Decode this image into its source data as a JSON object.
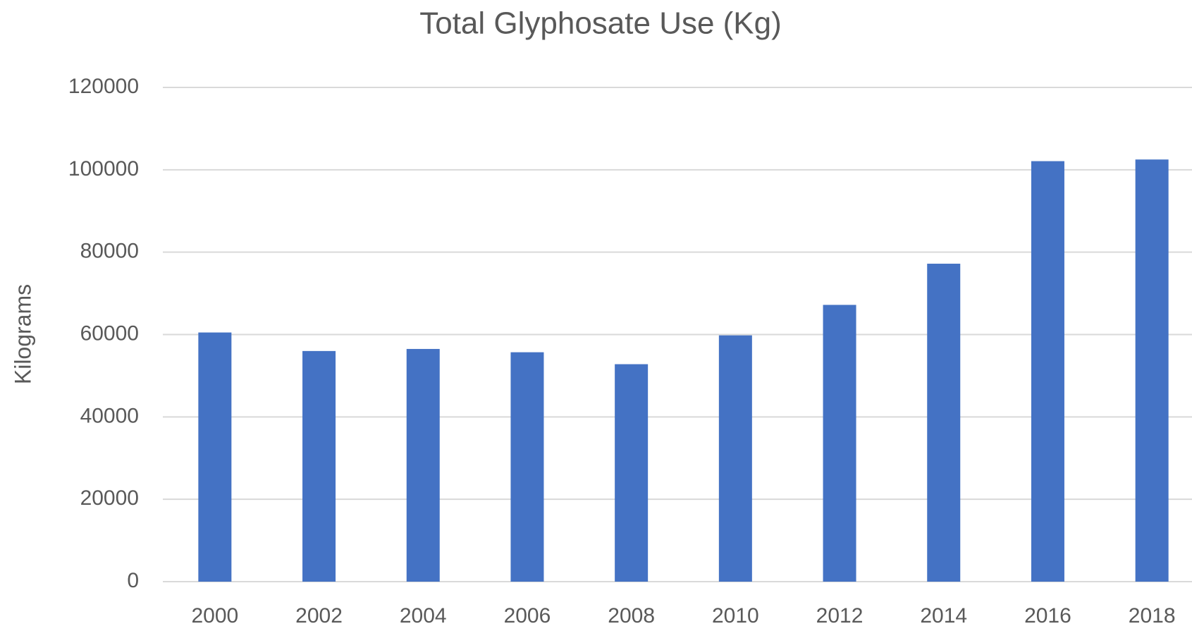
{
  "chart_data": {
    "type": "bar",
    "title": "Total Glyphosate Use (Kg)",
    "y_label": "Kilograms",
    "categories": [
      "2000",
      "2002",
      "2004",
      "2006",
      "2008",
      "2010",
      "2012",
      "2014",
      "2016",
      "2018"
    ],
    "values": [
      60500,
      56000,
      56500,
      55700,
      52800,
      59800,
      67200,
      77200,
      102100,
      102500
    ],
    "color": "#4472c4",
    "ylim": [
      0,
      120000
    ],
    "yticks": [
      0,
      20000,
      40000,
      60000,
      80000,
      100000,
      120000
    ],
    "grid": true
  }
}
